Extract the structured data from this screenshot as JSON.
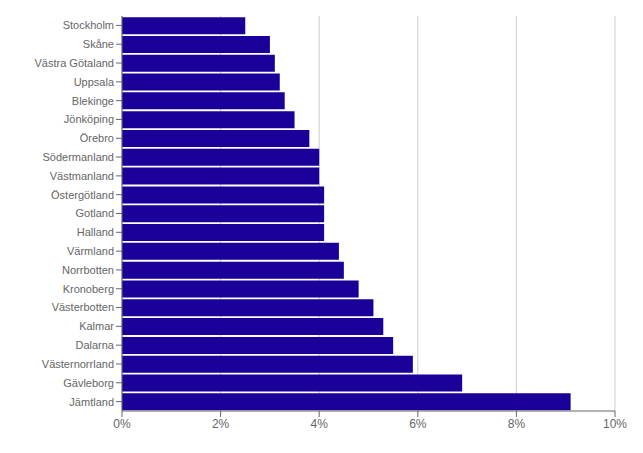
{
  "chart_data": {
    "type": "bar",
    "orientation": "horizontal",
    "categories": [
      "Jämtland",
      "Gävleborg",
      "Västernorrland",
      "Dalarna",
      "Kalmar",
      "Västerbotten",
      "Kronoberg",
      "Norrbotten",
      "Värmland",
      "Halland",
      "Gotland",
      "Östergötland",
      "Västmanland",
      "Södermanland",
      "Örebro",
      "Jönköping",
      "Blekinge",
      "Uppsala",
      "Västra Götaland",
      "Skåne",
      "Stockholm"
    ],
    "values": [
      9.1,
      6.9,
      5.9,
      5.5,
      5.3,
      5.1,
      4.8,
      4.5,
      4.4,
      4.1,
      4.1,
      4.1,
      4.0,
      4.0,
      3.8,
      3.5,
      3.3,
      3.2,
      3.1,
      3.0,
      2.5
    ],
    "color": "#1a0099",
    "xlim": [
      0,
      10
    ],
    "xticks": [
      {
        "value": 0,
        "label": "0%"
      },
      {
        "value": 2,
        "label": "2%"
      },
      {
        "value": 4,
        "label": "4%"
      },
      {
        "value": 6,
        "label": "6%"
      },
      {
        "value": 8,
        "label": "8%"
      },
      {
        "value": 10,
        "label": "10%"
      }
    ],
    "grid": true
  }
}
